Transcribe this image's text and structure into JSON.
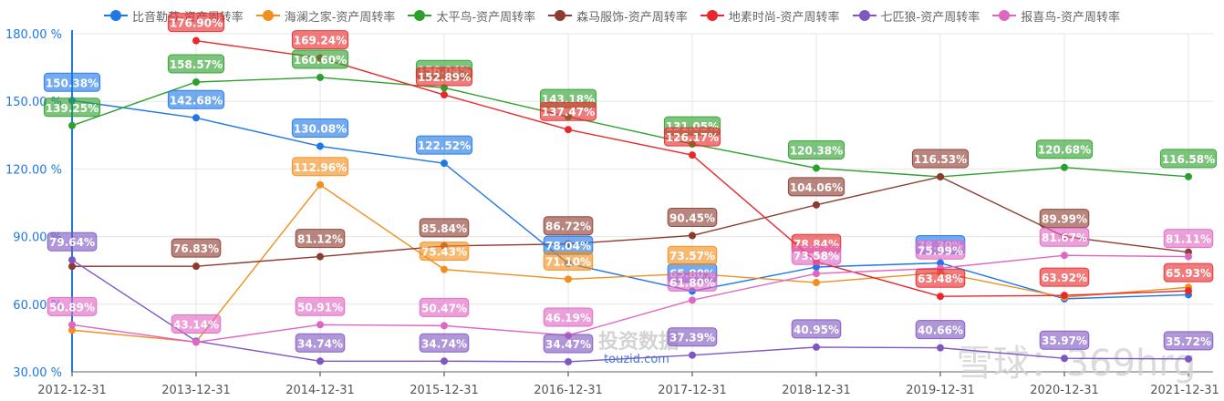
{
  "chart_data": {
    "type": "line",
    "title": "",
    "xlabel": "",
    "ylabel": "",
    "ylim": [
      30,
      180
    ],
    "yticks": [
      "30.00 %",
      "60.00 %",
      "90.00 %",
      "120.00 %",
      "150.00 %",
      "180.00 %"
    ],
    "ytick_values": [
      30,
      60,
      90,
      120,
      150,
      180
    ],
    "grid": true,
    "legend_position": "top",
    "categories": [
      "2012-12-31",
      "2013-12-31",
      "2014-12-31",
      "2015-12-31",
      "2016-12-31",
      "2017-12-31",
      "2018-12-31",
      "2019-12-31",
      "2020-12-31",
      "2021-12-31"
    ],
    "series": [
      {
        "name": "比音勒芬-资产周转率",
        "color": "#1f78e6",
        "values": [
          150.38,
          142.68,
          130.08,
          122.52,
          78.04,
          65.8,
          76.5,
          78.3,
          62.4,
          64.2
        ]
      },
      {
        "name": "海澜之家-资产周转率",
        "color": "#f28e1c",
        "values": [
          48.5,
          43.3,
          112.96,
          75.43,
          71.1,
          73.57,
          69.6,
          74.0,
          63.1,
          67.5
        ]
      },
      {
        "name": "太平鸟-资产周转率",
        "color": "#2ca02c",
        "values": [
          139.25,
          158.57,
          160.6,
          156.04,
          143.18,
          131.05,
          120.38,
          116.53,
          120.68,
          116.58
        ]
      },
      {
        "name": "森马服饰-资产周转率",
        "color": "#8c3b2e",
        "values": [
          76.8,
          76.83,
          81.12,
          85.84,
          86.72,
          90.45,
          104.06,
          116.53,
          89.99,
          83.1
        ]
      },
      {
        "name": "地素时尚-资产周转率",
        "color": "#e8282b",
        "values": [
          null,
          176.9,
          169.24,
          152.89,
          137.47,
          126.17,
          78.84,
          63.48,
          63.92,
          65.93
        ]
      },
      {
        "name": "七匹狼-资产周转率",
        "color": "#7e57c2",
        "values": [
          79.64,
          43.6,
          34.74,
          34.74,
          34.47,
          37.39,
          40.95,
          40.66,
          35.97,
          35.72
        ]
      },
      {
        "name": "报喜鸟-资产周转率",
        "color": "#e066c4",
        "values": [
          50.89,
          43.14,
          50.91,
          50.47,
          46.19,
          61.8,
          73.58,
          75.99,
          81.67,
          81.11
        ]
      }
    ],
    "data_labels": [
      {
        "series": 0,
        "labels": [
          "150.38%",
          "142.68%",
          "130.08%",
          "122.52%",
          "78.04%",
          "65.80%",
          "",
          "78.30%",
          "",
          ""
        ]
      },
      {
        "series": 1,
        "labels": [
          "",
          "",
          "112.96%",
          "75.43%",
          "71.10%",
          "73.57%",
          "",
          "",
          "",
          ""
        ]
      },
      {
        "series": 2,
        "labels": [
          "139.25%",
          "158.57%",
          "160.60%",
          "156.04%",
          "143.18%",
          "131.05%",
          "120.38%",
          "",
          "120.68%",
          "116.58%"
        ]
      },
      {
        "series": 3,
        "labels": [
          "",
          "76.83%",
          "81.12%",
          "85.84%",
          "86.72%",
          "90.45%",
          "104.06%",
          "116.53%",
          "89.99%",
          ""
        ]
      },
      {
        "series": 4,
        "labels": [
          "",
          "176.90%",
          "169.24%",
          "152.89%",
          "137.47%",
          "126.17%",
          "78.84%",
          "63.48%",
          "63.92%",
          "65.93%"
        ]
      },
      {
        "series": 5,
        "labels": [
          "79.64%",
          "",
          "34.74%",
          "34.74%",
          "34.47%",
          "37.39%",
          "40.95%",
          "40.66%",
          "35.97%",
          "35.72%"
        ]
      },
      {
        "series": 6,
        "labels": [
          "50.89%",
          "43.14%",
          "50.91%",
          "50.47%",
          "46.19%",
          "61.80%",
          "73.58%",
          "75.99%",
          "81.67%",
          "81.11%"
        ]
      }
    ],
    "watermarks": [
      "投资数据",
      "touzid.com",
      "雪球：369hrg"
    ]
  },
  "legend": {
    "items": [
      {
        "label": "比音勒芬-资产周转率",
        "color": "#1f78e6"
      },
      {
        "label": "海澜之家-资产周转率",
        "color": "#f28e1c"
      },
      {
        "label": "太平鸟-资产周转率",
        "color": "#2ca02c"
      },
      {
        "label": "森马服饰-资产周转率",
        "color": "#8c3b2e"
      },
      {
        "label": "地素时尚-资产周转率",
        "color": "#e8282b"
      },
      {
        "label": "七匹狼-资产周转率",
        "color": "#7e57c2"
      },
      {
        "label": "报喜鸟-资产周转率",
        "color": "#e066c4"
      }
    ]
  },
  "axis_color": "#1f78e6",
  "grid_color": "#e6e6e6"
}
